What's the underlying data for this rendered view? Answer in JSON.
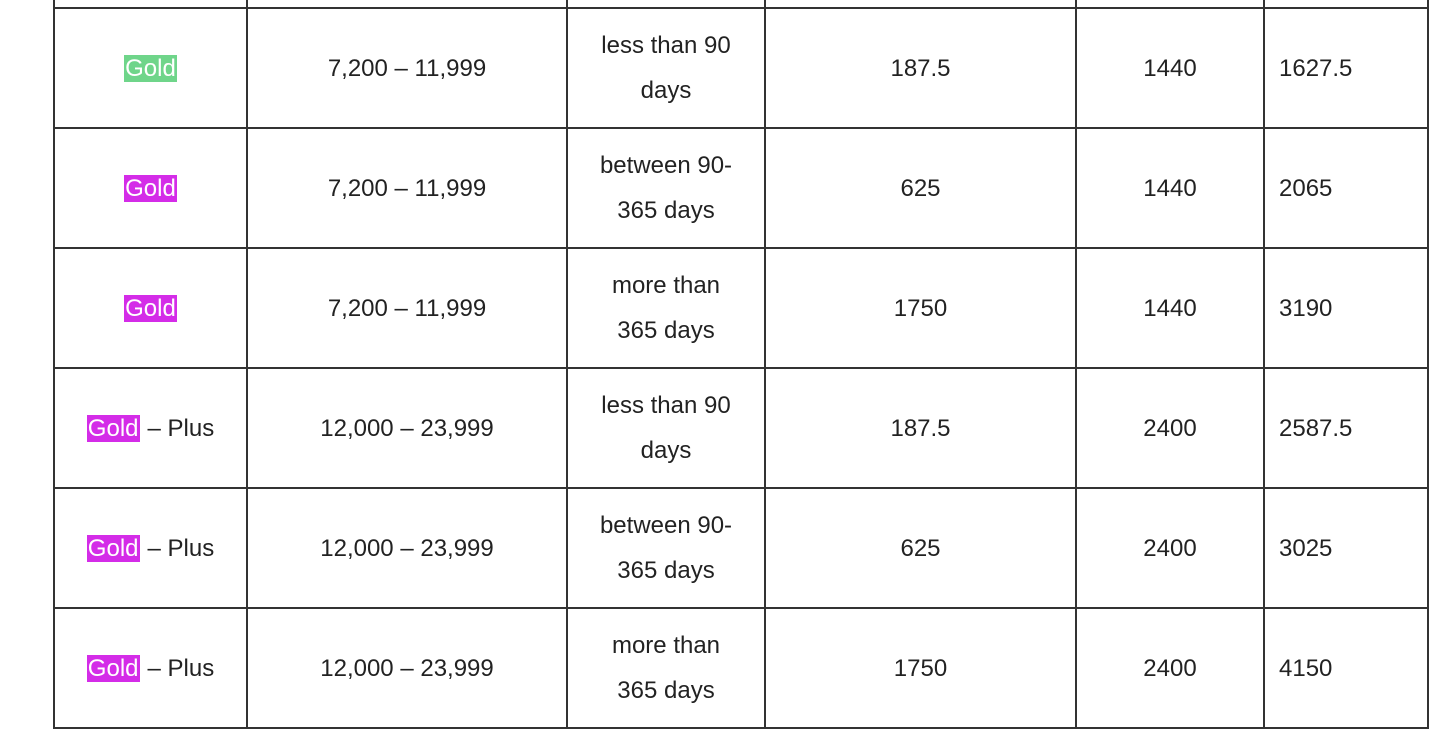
{
  "table": {
    "rows": [
      {
        "tier": {
          "highlight": "Gold",
          "highlight_color": "#6fd58a"
        },
        "range": "7,200 – 11,999",
        "period": "less than 90 days",
        "fee": 187.5,
        "base": 1440,
        "total": 1627.5
      },
      {
        "tier": {
          "highlight": "Gold",
          "highlight_color": "#d42ce8"
        },
        "range": "7,200 – 11,999",
        "period": "between 90-365 days",
        "fee": 625,
        "base": 1440,
        "total": 2065
      },
      {
        "tier": {
          "highlight": "Gold",
          "highlight_color": "#d42ce8"
        },
        "range": "7,200 – 11,999",
        "period": "more than 365 days",
        "fee": 1750,
        "base": 1440,
        "total": 3190
      },
      {
        "tier": {
          "highlight": "Gold",
          "highlight_color": "#d42ce8",
          "suffix": "– Plus"
        },
        "range": "12,000 – 23,999",
        "period": "less than 90 days",
        "fee": 187.5,
        "base": 2400,
        "total": 2587.5
      },
      {
        "tier": {
          "highlight": "Gold",
          "highlight_color": "#d42ce8",
          "suffix": "– Plus"
        },
        "range": "12,000 – 23,999",
        "period": "between 90-365 days",
        "fee": 625,
        "base": 2400,
        "total": 3025
      },
      {
        "tier": {
          "highlight": "Gold",
          "highlight_color": "#d42ce8",
          "suffix": "– Plus"
        },
        "range": "12,000 – 23,999",
        "period": "more than 365 days",
        "fee": 1750,
        "base": 2400,
        "total": 4150
      }
    ]
  }
}
